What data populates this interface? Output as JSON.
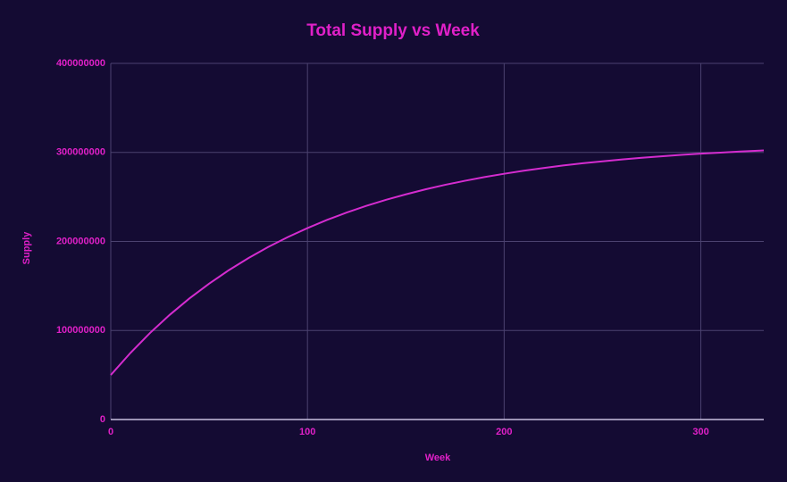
{
  "chart_data": {
    "type": "line",
    "title": "Total Supply vs Week",
    "x_label": "Week",
    "y_label": "Supply",
    "x": [
      0,
      10,
      20,
      30,
      40,
      50,
      60,
      70,
      80,
      90,
      100,
      110,
      120,
      130,
      140,
      150,
      160,
      170,
      180,
      190,
      200,
      210,
      220,
      230,
      240,
      250,
      260,
      270,
      280,
      290,
      300,
      310,
      320,
      330,
      332
    ],
    "series": [
      {
        "name": "Total Supply",
        "color": "#d42ccf",
        "values": [
          50000000,
          74800000,
          97300000,
          117600000,
          136000000,
          152600000,
          167700000,
          181300000,
          193700000,
          204900000,
          215000000,
          224200000,
          232500000,
          240000000,
          246800000,
          252900000,
          258500000,
          263600000,
          268100000,
          272300000,
          276000000,
          279400000,
          282500000,
          285300000,
          287800000,
          290000000,
          292100000,
          294000000,
          295600000,
          297200000,
          298600000,
          299800000,
          301000000,
          302000000,
          302200000
        ]
      }
    ],
    "xlim": [
      0,
      332
    ],
    "xticks": [
      0,
      100,
      200,
      300
    ],
    "ylim": [
      0,
      400000000
    ],
    "yticks": [
      0,
      100000000,
      200000000,
      300000000,
      400000000
    ],
    "grid": true
  }
}
